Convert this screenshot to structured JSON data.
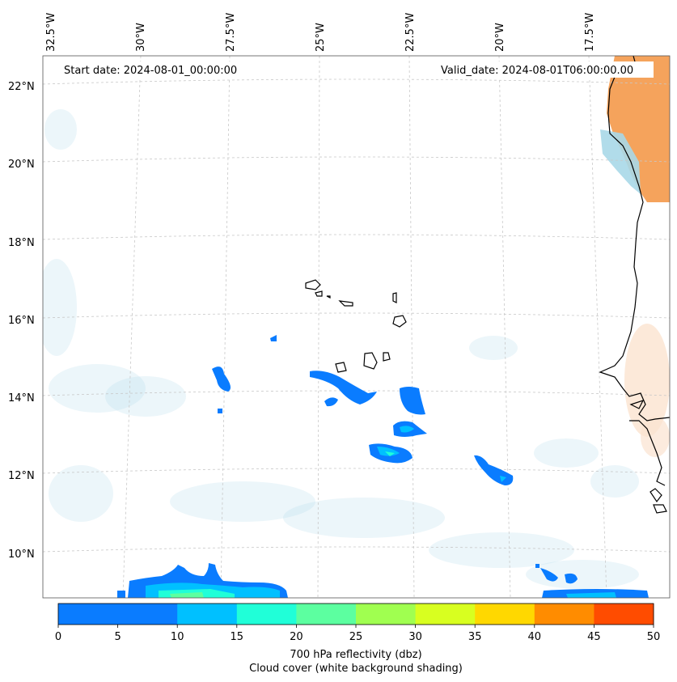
{
  "header": {
    "start_date": "Start date: 2024-08-01_00:00:00",
    "valid_date": "Valid_date: 2024-08-01T06:00:00.00"
  },
  "axes": {
    "lon_labels": [
      "32.5°W",
      "30°W",
      "27.5°W",
      "25°W",
      "22.5°W",
      "20°W",
      "17.5°W"
    ],
    "lat_labels": [
      "22°N",
      "20°N",
      "18°N",
      "16°N",
      "14°N",
      "12°N",
      "10°N"
    ]
  },
  "colorbar": {
    "ticks": [
      "0",
      "5",
      "10",
      "15",
      "20",
      "25",
      "30",
      "35",
      "40",
      "45",
      "50"
    ],
    "colors": [
      "#0a7cff",
      "#00c0ff",
      "#20ffd8",
      "#5cffa0",
      "#a0ff50",
      "#d8ff20",
      "#ffd800",
      "#ff8c00",
      "#ff4c00"
    ],
    "label_line1": "700 hPa reflectivity (dbz)",
    "label_line2": "Cloud cover (white background shading)"
  },
  "style": {
    "land_orange": "#f5a35c",
    "cloud_light_blue": "#a8d8e8"
  }
}
